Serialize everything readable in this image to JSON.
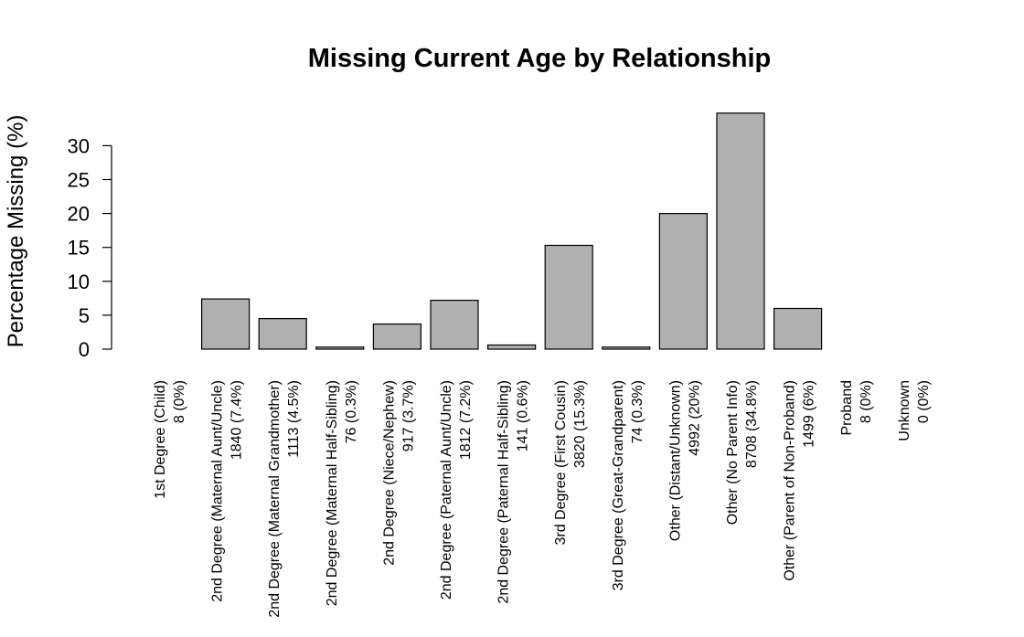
{
  "chart_data": {
    "type": "bar",
    "title": "Missing Current Age by Relationship",
    "xlabel": "",
    "ylabel": "Percentage Missing (%)",
    "ylim": [
      0,
      35
    ],
    "yticks": [
      0,
      5,
      10,
      15,
      20,
      25,
      30
    ],
    "grid": false,
    "legend": "none",
    "bar_color": "#b0b0b0",
    "bar_border_color": "#000000",
    "categories": [
      {
        "name": "1st Degree (Child)",
        "sub": "8 (0%)",
        "value": 0
      },
      {
        "name": "2nd Degree (Maternal Aunt/Uncle)",
        "sub": "1840 (7.4%)",
        "value": 7.4
      },
      {
        "name": "2nd Degree (Maternal Grandmother)",
        "sub": "1113 (4.5%)",
        "value": 4.5
      },
      {
        "name": "2nd Degree (Maternal Half-Sibling)",
        "sub": "76 (0.3%)",
        "value": 0.3
      },
      {
        "name": "2nd Degree (Niece/Nephew)",
        "sub": "917 (3.7%)",
        "value": 3.7
      },
      {
        "name": "2nd Degree (Paternal Aunt/Uncle)",
        "sub": "1812 (7.2%)",
        "value": 7.2
      },
      {
        "name": "2nd Degree (Paternal Half-Sibling)",
        "sub": "141 (0.6%)",
        "value": 0.6
      },
      {
        "name": "3rd Degree (First Cousin)",
        "sub": "3820 (15.3%)",
        "value": 15.3
      },
      {
        "name": "3rd Degree (Great-Grandparent)",
        "sub": "74 (0.3%)",
        "value": 0.3
      },
      {
        "name": "Other (Distant/Unknown)",
        "sub": "4992 (20%)",
        "value": 20
      },
      {
        "name": "Other (No Parent Info)",
        "sub": "8708 (34.8%)",
        "value": 34.8
      },
      {
        "name": "Other (Parent of Non-Proband)",
        "sub": "1499 (6%)",
        "value": 6
      },
      {
        "name": "Proband",
        "sub": "8 (0%)",
        "value": 0
      },
      {
        "name": "Unknown",
        "sub": "0 (0%)",
        "value": 0
      }
    ]
  }
}
